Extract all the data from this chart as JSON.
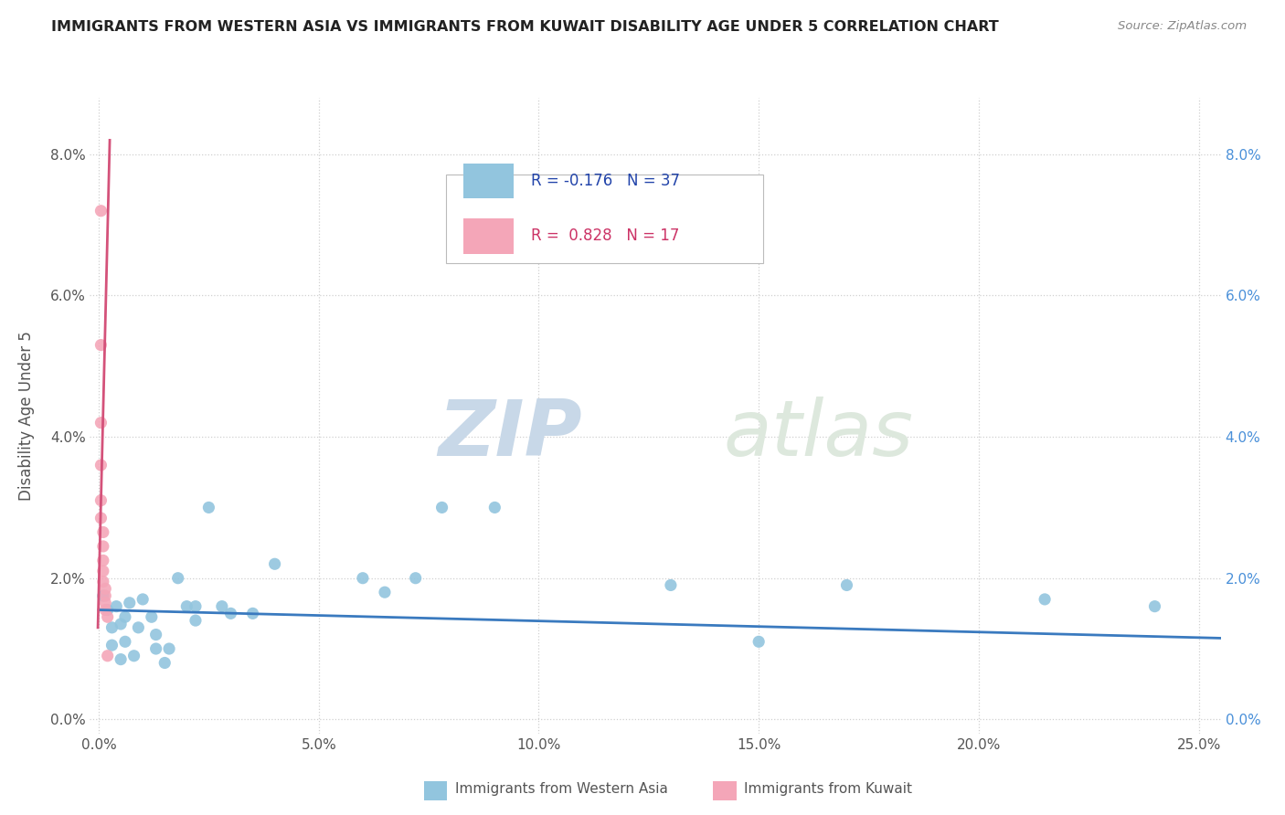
{
  "title": "IMMIGRANTS FROM WESTERN ASIA VS IMMIGRANTS FROM KUWAIT DISABILITY AGE UNDER 5 CORRELATION CHART",
  "source": "Source: ZipAtlas.com",
  "ylabel": "Disability Age Under 5",
  "x_tick_vals": [
    0.0,
    0.05,
    0.1,
    0.15,
    0.2,
    0.25
  ],
  "y_tick_vals": [
    0.0,
    0.02,
    0.04,
    0.06,
    0.08
  ],
  "xlim": [
    -0.002,
    0.255
  ],
  "ylim": [
    -0.002,
    0.088
  ],
  "legend_label_blue": "Immigrants from Western Asia",
  "legend_label_pink": "Immigrants from Kuwait",
  "R_blue": -0.176,
  "N_blue": 37,
  "R_pink": 0.828,
  "N_pink": 17,
  "blue_color": "#92c5de",
  "pink_color": "#f4a6b8",
  "line_blue": "#3a7abf",
  "line_pink": "#d4527a",
  "watermark_zip": "ZIP",
  "watermark_atlas": "atlas",
  "blue_points": [
    [
      0.001,
      0.0175
    ],
    [
      0.002,
      0.0155
    ],
    [
      0.003,
      0.013
    ],
    [
      0.003,
      0.0105
    ],
    [
      0.004,
      0.016
    ],
    [
      0.005,
      0.0135
    ],
    [
      0.005,
      0.0085
    ],
    [
      0.006,
      0.0145
    ],
    [
      0.006,
      0.011
    ],
    [
      0.007,
      0.0165
    ],
    [
      0.008,
      0.009
    ],
    [
      0.009,
      0.013
    ],
    [
      0.01,
      0.017
    ],
    [
      0.012,
      0.0145
    ],
    [
      0.013,
      0.01
    ],
    [
      0.013,
      0.012
    ],
    [
      0.015,
      0.008
    ],
    [
      0.016,
      0.01
    ],
    [
      0.018,
      0.02
    ],
    [
      0.02,
      0.016
    ],
    [
      0.022,
      0.014
    ],
    [
      0.022,
      0.016
    ],
    [
      0.025,
      0.03
    ],
    [
      0.028,
      0.016
    ],
    [
      0.03,
      0.015
    ],
    [
      0.035,
      0.015
    ],
    [
      0.04,
      0.022
    ],
    [
      0.06,
      0.02
    ],
    [
      0.065,
      0.018
    ],
    [
      0.072,
      0.02
    ],
    [
      0.078,
      0.03
    ],
    [
      0.09,
      0.03
    ],
    [
      0.13,
      0.019
    ],
    [
      0.15,
      0.011
    ],
    [
      0.17,
      0.019
    ],
    [
      0.215,
      0.017
    ],
    [
      0.24,
      0.016
    ]
  ],
  "pink_points": [
    [
      0.0005,
      0.072
    ],
    [
      0.0005,
      0.053
    ],
    [
      0.0005,
      0.042
    ],
    [
      0.0005,
      0.036
    ],
    [
      0.0005,
      0.031
    ],
    [
      0.0005,
      0.0285
    ],
    [
      0.001,
      0.0265
    ],
    [
      0.001,
      0.0245
    ],
    [
      0.001,
      0.0225
    ],
    [
      0.001,
      0.021
    ],
    [
      0.001,
      0.0195
    ],
    [
      0.0015,
      0.0185
    ],
    [
      0.0015,
      0.0175
    ],
    [
      0.0015,
      0.0165
    ],
    [
      0.0015,
      0.0155
    ],
    [
      0.002,
      0.0145
    ],
    [
      0.002,
      0.009
    ]
  ],
  "blue_line_x": [
    0.0,
    0.255
  ],
  "blue_line_y": [
    0.0155,
    0.0115
  ],
  "pink_line_x": [
    -0.0002,
    0.0025
  ],
  "pink_line_y": [
    0.013,
    0.082
  ]
}
